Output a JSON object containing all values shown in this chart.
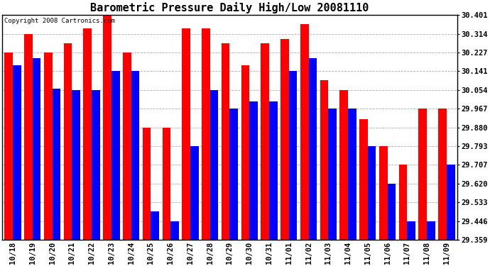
{
  "title": "Barometric Pressure Daily High/Low 20081110",
  "copyright": "Copyright 2008 Cartronics.com",
  "dates": [
    "10/18",
    "10/19",
    "10/20",
    "10/21",
    "10/22",
    "10/23",
    "10/24",
    "10/25",
    "10/26",
    "10/27",
    "10/28",
    "10/29",
    "10/30",
    "10/31",
    "11/01",
    "11/02",
    "11/03",
    "11/04",
    "11/05",
    "11/06",
    "11/07",
    "11/08",
    "11/09"
  ],
  "highs": [
    30.227,
    30.314,
    30.227,
    30.27,
    30.34,
    30.401,
    30.227,
    29.88,
    29.88,
    30.34,
    30.34,
    30.27,
    30.167,
    30.27,
    30.29,
    30.36,
    30.1,
    30.054,
    29.92,
    29.793,
    29.707,
    29.967,
    29.967
  ],
  "lows": [
    30.167,
    30.2,
    30.06,
    30.054,
    30.054,
    30.141,
    30.141,
    29.49,
    29.446,
    29.793,
    30.054,
    29.967,
    30.0,
    30.0,
    30.141,
    30.2,
    29.967,
    29.967,
    29.793,
    29.62,
    29.446,
    29.446,
    29.707
  ],
  "ymin": 29.359,
  "ymax": 30.401,
  "yticks": [
    29.359,
    29.446,
    29.533,
    29.62,
    29.707,
    29.793,
    29.88,
    29.967,
    30.054,
    30.141,
    30.227,
    30.314,
    30.401
  ],
  "bar_width": 0.42,
  "high_color": "#ff0000",
  "low_color": "#0000ff",
  "bg_color": "#ffffff",
  "grid_color": "#888888",
  "title_fontsize": 11,
  "tick_fontsize": 7.5,
  "copyright_fontsize": 6.5
}
